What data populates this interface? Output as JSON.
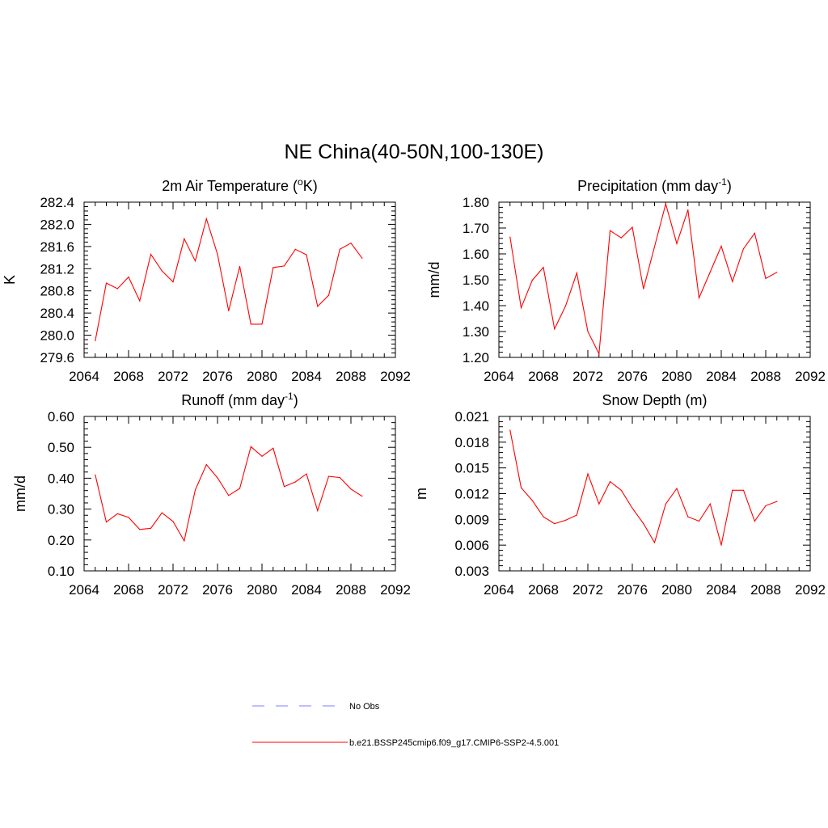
{
  "figure": {
    "title": "NE China(40-50N,100-130E)"
  },
  "legend": {
    "items": [
      {
        "label": "No Obs",
        "color": "#9999ff",
        "dash": "dashed"
      },
      {
        "label": "b.e21.BSSP245cmip6.f09_g17.CMIP6-SSP2-4.5.001",
        "color": "#ff0000",
        "dash": "solid"
      }
    ]
  },
  "chart_data": [
    {
      "type": "line",
      "title": "2m Air Temperature (°K)",
      "title_parts": {
        "pre": "2m Air Temperature (",
        "sup": "o",
        "post": "K)"
      },
      "xlabel": "",
      "ylabel": "K",
      "xlim": [
        2064,
        2092
      ],
      "ylim": [
        279.6,
        282.4
      ],
      "xticks": [
        "2064",
        "2068",
        "2072",
        "2076",
        "2080",
        "2084",
        "2088",
        "2092"
      ],
      "yticks": [
        "279.6",
        "280.0",
        "280.4",
        "280.8",
        "281.2",
        "281.6",
        "282.0",
        "282.4"
      ],
      "grid": false,
      "series": [
        {
          "color": "#ff0000",
          "x": [
            2065,
            2066,
            2067,
            2068,
            2069,
            2070,
            2071,
            2072,
            2073,
            2074,
            2075,
            2076,
            2077,
            2078,
            2079,
            2080,
            2081,
            2082,
            2083,
            2084,
            2085,
            2086,
            2087,
            2088,
            2089
          ],
          "values": [
            279.9,
            280.94,
            280.84,
            281.05,
            280.62,
            281.46,
            281.16,
            280.96,
            281.74,
            281.34,
            282.1,
            281.46,
            280.44,
            281.24,
            280.2,
            280.2,
            281.22,
            281.25,
            281.55,
            281.45,
            280.52,
            280.72,
            281.55,
            281.66,
            281.39
          ]
        }
      ]
    },
    {
      "type": "line",
      "title": "Precipitation (mm day-1)",
      "title_parts": {
        "pre": "Precipitation (mm day",
        "sup": "-1",
        "post": ")"
      },
      "xlabel": "",
      "ylabel": "mm/d",
      "xlim": [
        2064,
        2092
      ],
      "ylim": [
        1.2,
        1.8
      ],
      "xticks": [
        "2064",
        "2068",
        "2072",
        "2076",
        "2080",
        "2084",
        "2088",
        "2092"
      ],
      "yticks": [
        "1.20",
        "1.30",
        "1.40",
        "1.50",
        "1.60",
        "1.70",
        "1.80"
      ],
      "grid": false,
      "series": [
        {
          "color": "#ff0000",
          "x": [
            2065,
            2066,
            2067,
            2068,
            2069,
            2070,
            2071,
            2072,
            2073,
            2074,
            2075,
            2076,
            2077,
            2078,
            2079,
            2080,
            2081,
            2082,
            2083,
            2084,
            2085,
            2086,
            2087,
            2088,
            2089
          ],
          "values": [
            1.665,
            1.392,
            1.498,
            1.548,
            1.31,
            1.399,
            1.526,
            1.3,
            1.214,
            1.69,
            1.662,
            1.703,
            1.465,
            1.628,
            1.793,
            1.64,
            1.77,
            1.43,
            1.53,
            1.63,
            1.493,
            1.62,
            1.68,
            1.505,
            1.529
          ]
        }
      ]
    },
    {
      "type": "line",
      "title": "Runoff (mm day-1)",
      "title_parts": {
        "pre": "Runoff (mm day",
        "sup": "-1",
        "post": ")"
      },
      "xlabel": "",
      "ylabel": "mm/d",
      "xlim": [
        2064,
        2092
      ],
      "ylim": [
        0.1,
        0.6
      ],
      "xticks": [
        "2064",
        "2068",
        "2072",
        "2076",
        "2080",
        "2084",
        "2088",
        "2092"
      ],
      "yticks": [
        "0.10",
        "0.20",
        "0.30",
        "0.40",
        "0.50",
        "0.60"
      ],
      "grid": false,
      "series": [
        {
          "color": "#ff0000",
          "x": [
            2065,
            2066,
            2067,
            2068,
            2069,
            2070,
            2071,
            2072,
            2073,
            2074,
            2075,
            2076,
            2077,
            2078,
            2079,
            2080,
            2081,
            2082,
            2083,
            2084,
            2085,
            2086,
            2087,
            2088,
            2089
          ],
          "values": [
            0.411,
            0.258,
            0.285,
            0.273,
            0.234,
            0.238,
            0.288,
            0.26,
            0.197,
            0.362,
            0.444,
            0.401,
            0.344,
            0.367,
            0.502,
            0.471,
            0.497,
            0.373,
            0.388,
            0.414,
            0.295,
            0.406,
            0.402,
            0.365,
            0.342
          ]
        }
      ]
    },
    {
      "type": "line",
      "title": "Snow Depth (m)",
      "title_parts": {
        "pre": "Snow Depth (m)",
        "sup": "",
        "post": ""
      },
      "xlabel": "",
      "ylabel": "m",
      "xlim": [
        2064,
        2092
      ],
      "ylim": [
        0.003,
        0.021
      ],
      "xticks": [
        "2064",
        "2068",
        "2072",
        "2076",
        "2080",
        "2084",
        "2088",
        "2092"
      ],
      "yticks": [
        "0.003",
        "0.006",
        "0.009",
        "0.012",
        "0.015",
        "0.018",
        "0.021"
      ],
      "grid": false,
      "series": [
        {
          "color": "#ff0000",
          "x": [
            2065,
            2066,
            2067,
            2068,
            2069,
            2070,
            2071,
            2072,
            2073,
            2074,
            2075,
            2076,
            2077,
            2078,
            2079,
            2080,
            2081,
            2082,
            2083,
            2084,
            2085,
            2086,
            2087,
            2088,
            2089
          ],
          "values": [
            0.0194,
            0.0127,
            0.0112,
            0.0093,
            0.0085,
            0.0089,
            0.0095,
            0.0143,
            0.0108,
            0.0134,
            0.0124,
            0.0103,
            0.0085,
            0.0063,
            0.0108,
            0.0126,
            0.0093,
            0.0088,
            0.0108,
            0.006,
            0.0124,
            0.0124,
            0.0088,
            0.0106,
            0.0111
          ]
        }
      ]
    }
  ]
}
